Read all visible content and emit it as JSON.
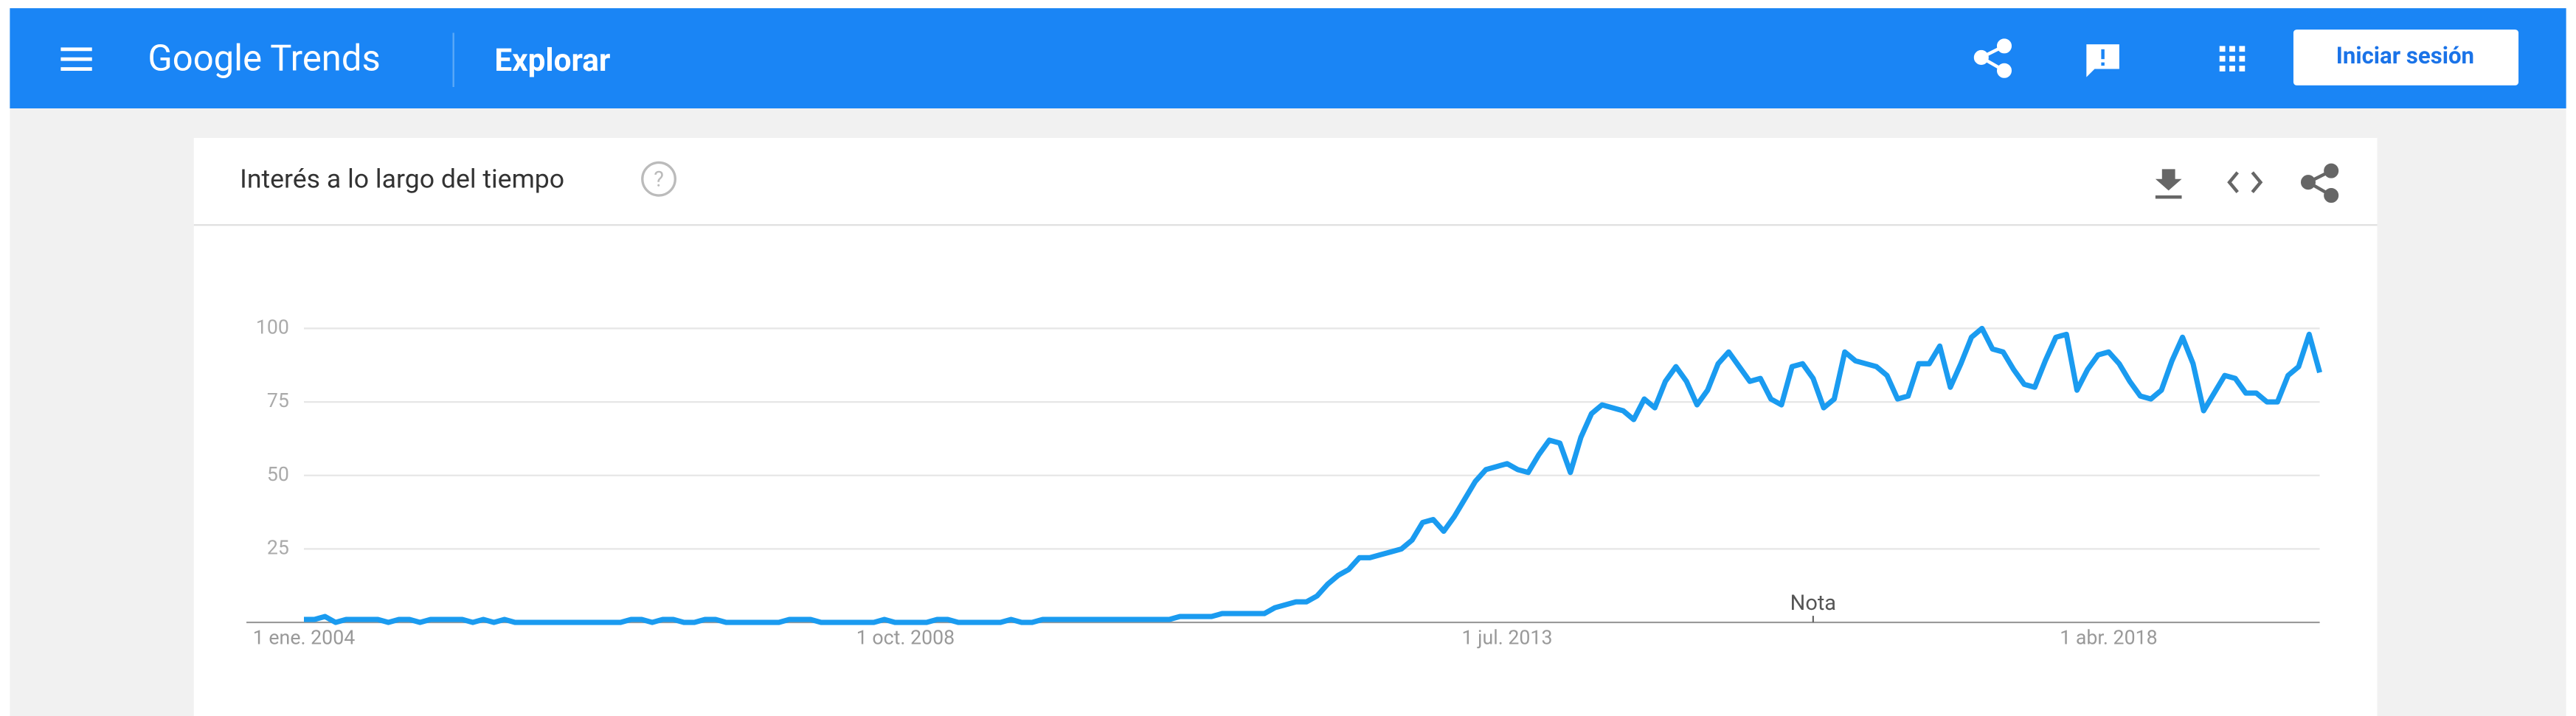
{
  "header": {
    "logo": "Google Trends",
    "section": "Explorar",
    "sign_in": "Iniciar sesión"
  },
  "card": {
    "title": "Interés a lo largo del tiempo"
  },
  "chart_data": {
    "type": "line",
    "color": "#1a9bf0",
    "categories": [
      "1 ene. 2004",
      null,
      null,
      null,
      null,
      null,
      null,
      null,
      null,
      null,
      null,
      null,
      null,
      null,
      null,
      null,
      null,
      null,
      null,
      null,
      null,
      null,
      null,
      null,
      null,
      null,
      null,
      null,
      null,
      null,
      null,
      null,
      null,
      null,
      null,
      null,
      null,
      null,
      null,
      null,
      null,
      null,
      null,
      null,
      null,
      null,
      null,
      null,
      null,
      null,
      null,
      null,
      null,
      null,
      null,
      null,
      null,
      "1 oct. 2008",
      null,
      null,
      null,
      null,
      null,
      null,
      null,
      null,
      null,
      null,
      null,
      null,
      null,
      null,
      null,
      null,
      null,
      null,
      null,
      null,
      null,
      null,
      null,
      null,
      null,
      null,
      null,
      null,
      null,
      null,
      null,
      null,
      null,
      null,
      null,
      null,
      null,
      null,
      null,
      null,
      null,
      null,
      null,
      null,
      null,
      null,
      null,
      null,
      null,
      null,
      null,
      null,
      null,
      null,
      null,
      null,
      "1 jul. 2013",
      null,
      null,
      null,
      null,
      null,
      null,
      null,
      null,
      null,
      null,
      null,
      null,
      null,
      null,
      null,
      null,
      null,
      null,
      null,
      null,
      null,
      null,
      null,
      null,
      null,
      null,
      null,
      null,
      null,
      null,
      null,
      null,
      null,
      null,
      null,
      null,
      null,
      null,
      null,
      null,
      null,
      null,
      null,
      null,
      null,
      null,
      null,
      null,
      null,
      null,
      null,
      null,
      null,
      null,
      null,
      null,
      "1 abr. 2018",
      null,
      null,
      null,
      null,
      null,
      null,
      null,
      null,
      null,
      null,
      null,
      null,
      null,
      null,
      null,
      null,
      null,
      null,
      null,
      null
    ],
    "values": [
      1,
      1,
      2,
      0,
      1,
      1,
      1,
      1,
      0,
      1,
      1,
      0,
      1,
      1,
      1,
      1,
      0,
      1,
      0,
      1,
      0,
      0,
      0,
      0,
      0,
      0,
      0,
      0,
      0,
      0,
      0,
      1,
      1,
      0,
      1,
      1,
      0,
      0,
      1,
      1,
      0,
      0,
      0,
      0,
      0,
      0,
      1,
      1,
      1,
      0,
      0,
      0,
      0,
      0,
      0,
      1,
      0,
      0,
      0,
      0,
      1,
      1,
      0,
      0,
      0,
      0,
      0,
      1,
      0,
      0,
      1,
      1,
      1,
      1,
      1,
      1,
      1,
      1,
      1,
      1,
      1,
      1,
      1,
      2,
      2,
      2,
      2,
      3,
      3,
      3,
      3,
      3,
      5,
      6,
      7,
      7,
      9,
      13,
      16,
      18,
      22,
      22,
      23,
      24,
      25,
      28,
      34,
      35,
      31,
      36,
      42,
      48,
      52,
      53,
      54,
      52,
      51,
      57,
      62,
      61,
      51,
      63,
      71,
      74,
      73,
      72,
      69,
      76,
      73,
      82,
      87,
      82,
      74,
      79,
      88,
      92,
      87,
      82,
      83,
      76,
      74,
      87,
      88,
      83,
      73,
      76,
      92,
      89,
      88,
      87,
      84,
      76,
      77,
      88,
      88,
      94,
      80,
      88,
      97,
      100,
      93,
      92,
      86,
      81,
      80,
      89,
      97,
      98,
      79,
      86,
      91,
      92,
      88,
      82,
      77,
      76,
      79,
      89,
      97,
      88,
      72,
      78,
      84,
      83,
      78,
      78,
      75,
      75,
      84,
      87,
      98,
      85
    ],
    "ylim": [
      0,
      100
    ],
    "yticks": [
      25,
      50,
      75,
      100
    ],
    "grid": true,
    "annotations": [
      {
        "text": "Nota",
        "index": 143
      }
    ]
  }
}
